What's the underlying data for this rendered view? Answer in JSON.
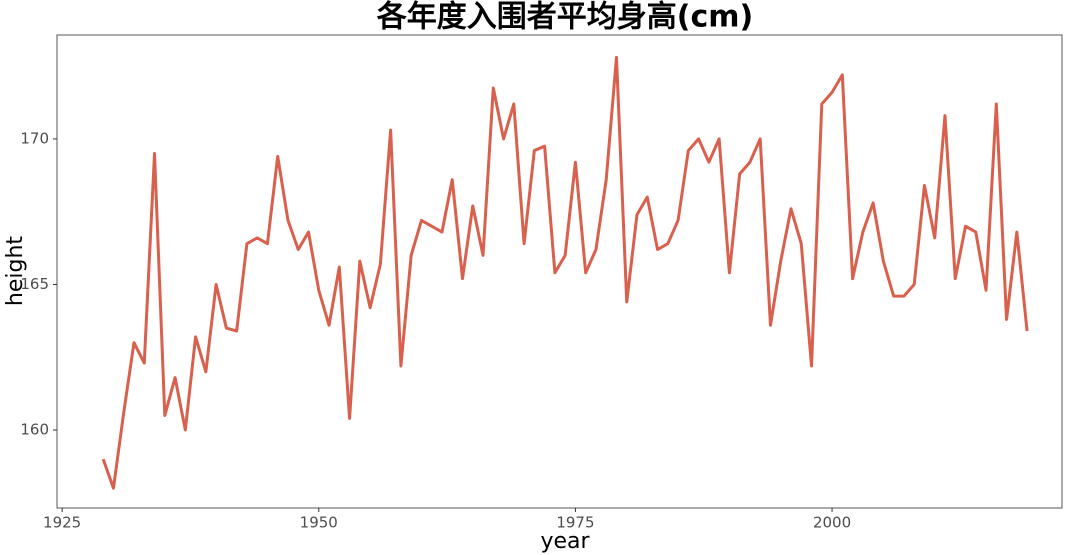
{
  "chart_data": {
    "type": "line",
    "title": "各年度入围者平均身高(cm)",
    "x_label": "year",
    "y_label": "height",
    "x": [
      1929,
      1930,
      1931,
      1932,
      1933,
      1934,
      1935,
      1936,
      1937,
      1938,
      1939,
      1940,
      1941,
      1942,
      1943,
      1944,
      1945,
      1946,
      1947,
      1948,
      1949,
      1950,
      1951,
      1952,
      1953,
      1954,
      1955,
      1956,
      1957,
      1958,
      1959,
      1960,
      1961,
      1962,
      1963,
      1964,
      1965,
      1966,
      1967,
      1968,
      1969,
      1970,
      1971,
      1972,
      1973,
      1974,
      1975,
      1976,
      1977,
      1978,
      1979,
      1980,
      1981,
      1982,
      1983,
      1984,
      1985,
      1986,
      1987,
      1988,
      1989,
      1990,
      1991,
      1992,
      1993,
      1994,
      1995,
      1996,
      1997,
      1998,
      1999,
      2000,
      2001,
      2002,
      2003,
      2004,
      2005,
      2006,
      2007,
      2008,
      2009,
      2010,
      2011,
      2012,
      2013,
      2014,
      2015,
      2016,
      2017,
      2018,
      2019
    ],
    "series": [
      {
        "name": "height",
        "color": "#d9604c",
        "values": [
          159.0,
          158.0,
          160.6,
          163.0,
          162.3,
          169.5,
          160.5,
          161.8,
          160.0,
          163.2,
          162.0,
          165.0,
          163.5,
          163.4,
          166.4,
          166.6,
          166.4,
          169.4,
          167.2,
          166.2,
          166.8,
          164.8,
          163.6,
          165.6,
          160.4,
          165.8,
          164.2,
          165.7,
          170.3,
          162.2,
          166.0,
          167.2,
          167.0,
          166.8,
          168.6,
          165.2,
          167.7,
          166.0,
          171.75,
          170.0,
          171.2,
          166.4,
          169.6,
          169.75,
          165.4,
          166.0,
          169.2,
          165.4,
          166.2,
          168.6,
          172.8,
          164.4,
          167.4,
          168.0,
          166.2,
          166.4,
          167.2,
          169.6,
          170.0,
          169.2,
          170.0,
          165.4,
          168.8,
          169.2,
          170.0,
          163.6,
          165.8,
          167.6,
          166.4,
          162.2,
          171.2,
          171.6,
          172.2,
          165.2,
          166.8,
          167.8,
          165.8,
          164.6,
          164.6,
          165.0,
          168.4,
          166.6,
          170.8,
          165.2,
          167.0,
          166.8,
          164.8,
          171.2,
          163.8,
          166.8,
          163.4
        ]
      }
    ],
    "xlim": [
      1924.5,
      2022.4
    ],
    "ylim": [
      157.32,
      173.57
    ],
    "xticks": [
      1925,
      1950,
      1975,
      2000
    ],
    "yticks": [
      160,
      165,
      170
    ]
  }
}
